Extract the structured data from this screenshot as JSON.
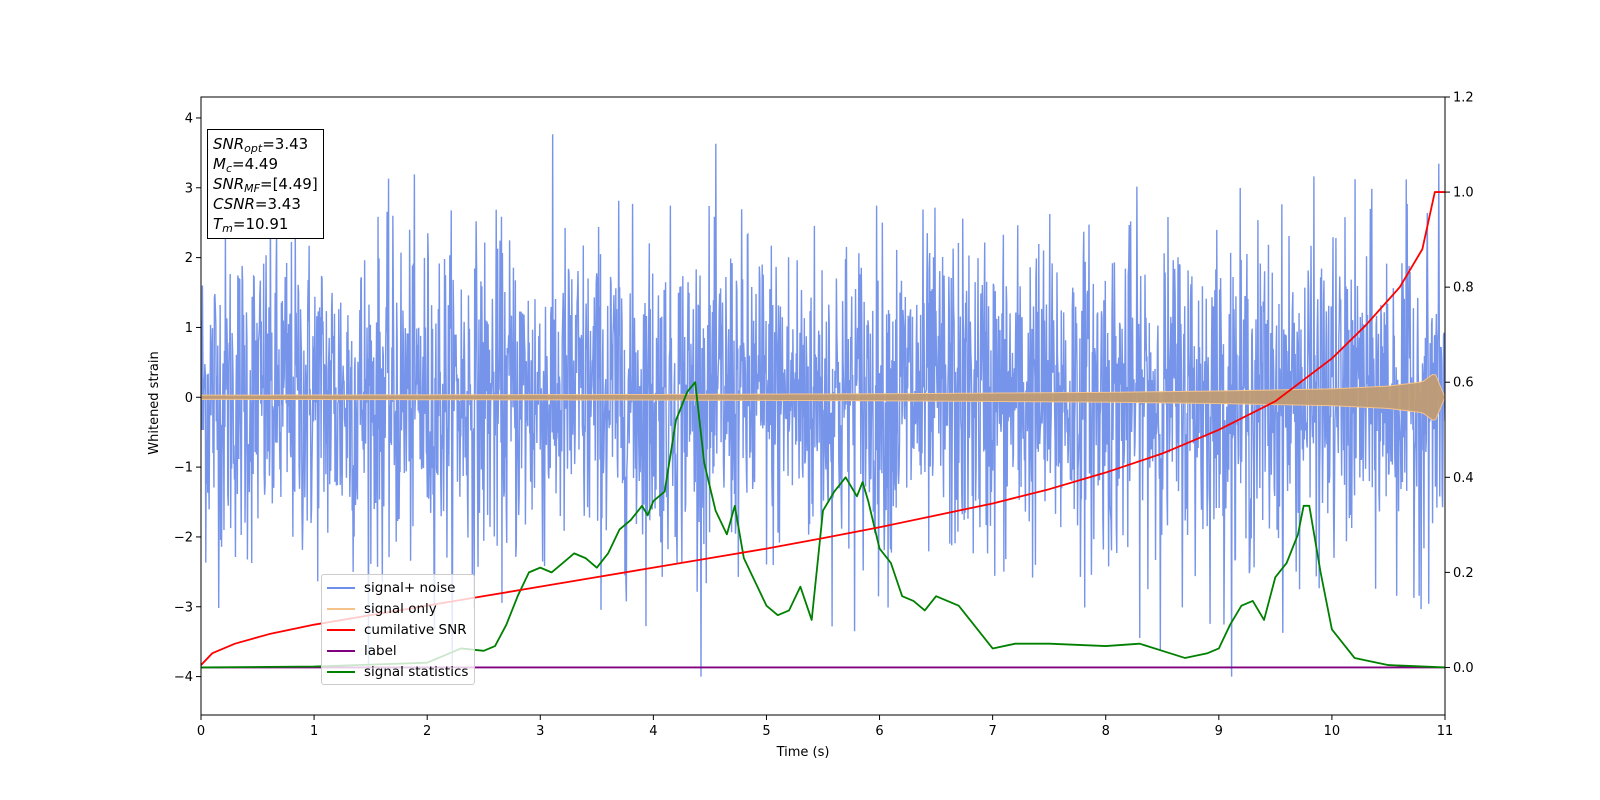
{
  "info_box": {
    "snr_opt": {
      "label": "SNR",
      "sub": "opt",
      "value": "=3.43"
    },
    "m_c": {
      "label": "M",
      "sub": "c",
      "value": "=4.49"
    },
    "snr_mf": {
      "label": "SNR",
      "sub": "MF",
      "value": "=[4.49]"
    },
    "csnr": {
      "label": "CSNR",
      "value": "=3.43"
    },
    "t_m": {
      "label": "T",
      "sub": "m",
      "value": "=10.91"
    }
  },
  "chart_data": {
    "type": "line",
    "xlabel": "Time (s)",
    "ylabel": "Whitened strain",
    "xlim": [
      0,
      11
    ],
    "ylim": [
      -4.55,
      4.3
    ],
    "y2lim": [
      -0.1,
      1.2
    ],
    "xticks": [
      "0",
      "1",
      "2",
      "3",
      "4",
      "5",
      "6",
      "7",
      "8",
      "9",
      "10",
      "11"
    ],
    "yticks": [
      "4",
      "3",
      "2",
      "1",
      "0",
      "−1",
      "−2",
      "−3",
      "−4"
    ],
    "y2ticks": [
      "1.2",
      "1.0",
      "0.8",
      "0.6",
      "0.4",
      "0.2",
      "0.0"
    ],
    "legend_position": "lower-left",
    "colors": {
      "signal_noise": "#6f8ee8",
      "signal_only": "#f5c38a",
      "signal_only_envelope": "#bf9b73",
      "cumulative_snr": "#ff0000",
      "label": "#800080",
      "signal_statistics": "#008000"
    },
    "series": [
      {
        "name": "signal+ noise",
        "key": "signal_noise",
        "axis": "left",
        "description_only": true,
        "amplitude_range": [
          -4.0,
          3.92
        ]
      },
      {
        "name": "signal only",
        "key": "signal_only",
        "axis": "left",
        "envelope_x": [
          0,
          2,
          4,
          6,
          8,
          9,
          10,
          10.5,
          10.8,
          10.91,
          11
        ],
        "envelope_y": [
          0.03,
          0.035,
          0.04,
          0.05,
          0.07,
          0.09,
          0.12,
          0.16,
          0.22,
          0.35,
          0.0
        ]
      },
      {
        "name": "cumilative SNR",
        "key": "cumulative_snr",
        "axis": "right",
        "x": [
          0,
          0.1,
          0.3,
          0.6,
          1,
          1.5,
          2,
          2.5,
          3,
          3.5,
          4,
          4.5,
          5,
          5.5,
          6,
          6.5,
          7,
          7.5,
          8,
          8.5,
          9,
          9.5,
          10,
          10.3,
          10.6,
          10.8,
          10.91,
          11
        ],
        "y": [
          0.005,
          0.03,
          0.05,
          0.07,
          0.09,
          0.11,
          0.13,
          0.15,
          0.17,
          0.19,
          0.21,
          0.23,
          0.25,
          0.272,
          0.295,
          0.32,
          0.345,
          0.375,
          0.41,
          0.45,
          0.5,
          0.56,
          0.65,
          0.72,
          0.8,
          0.88,
          1.0,
          1.0
        ]
      },
      {
        "name": "label",
        "key": "label",
        "axis": "right",
        "x": [
          0,
          11
        ],
        "y": [
          0,
          0
        ]
      },
      {
        "name": "signal statistics",
        "key": "signal_statistics",
        "axis": "right",
        "x": [
          0,
          1,
          2,
          2.3,
          2.5,
          2.6,
          2.7,
          2.8,
          2.9,
          3.0,
          3.1,
          3.2,
          3.3,
          3.4,
          3.5,
          3.6,
          3.7,
          3.8,
          3.9,
          3.95,
          4.0,
          4.1,
          4.2,
          4.3,
          4.37,
          4.45,
          4.55,
          4.65,
          4.72,
          4.8,
          4.9,
          5.0,
          5.1,
          5.2,
          5.3,
          5.4,
          5.5,
          5.6,
          5.7,
          5.8,
          5.85,
          5.9,
          6.0,
          6.1,
          6.2,
          6.3,
          6.4,
          6.5,
          6.6,
          6.7,
          6.8,
          6.9,
          7.0,
          7.2,
          7.5,
          8.0,
          8.3,
          8.5,
          8.7,
          8.9,
          9.0,
          9.1,
          9.2,
          9.3,
          9.4,
          9.5,
          9.6,
          9.7,
          9.75,
          9.8,
          9.9,
          10.0,
          10.2,
          10.5,
          11
        ],
        "y": [
          0,
          0.002,
          0.01,
          0.04,
          0.035,
          0.045,
          0.09,
          0.15,
          0.2,
          0.21,
          0.2,
          0.22,
          0.24,
          0.23,
          0.21,
          0.24,
          0.29,
          0.31,
          0.34,
          0.32,
          0.35,
          0.37,
          0.52,
          0.58,
          0.6,
          0.43,
          0.33,
          0.28,
          0.34,
          0.23,
          0.18,
          0.13,
          0.11,
          0.12,
          0.17,
          0.1,
          0.33,
          0.37,
          0.4,
          0.36,
          0.39,
          0.35,
          0.25,
          0.22,
          0.15,
          0.14,
          0.12,
          0.15,
          0.14,
          0.13,
          0.1,
          0.07,
          0.04,
          0.05,
          0.05,
          0.045,
          0.05,
          0.035,
          0.02,
          0.03,
          0.04,
          0.09,
          0.13,
          0.14,
          0.1,
          0.19,
          0.22,
          0.28,
          0.34,
          0.34,
          0.2,
          0.08,
          0.02,
          0.005,
          0
        ]
      }
    ]
  },
  "legend": {
    "items": [
      {
        "label": "signal+ noise",
        "color": "#6f8ee8"
      },
      {
        "label": "signal only",
        "color": "#f5c38a"
      },
      {
        "label": "cumilative SNR",
        "color": "#ff0000"
      },
      {
        "label": "label",
        "color": "#800080"
      },
      {
        "label": "signal statistics",
        "color": "#008000"
      }
    ]
  }
}
